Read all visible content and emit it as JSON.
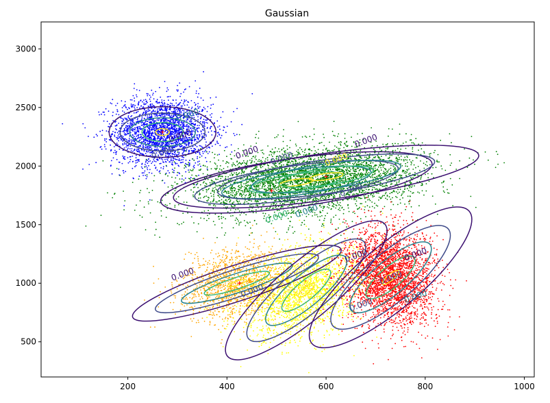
{
  "chart_data": {
    "type": "scatter",
    "title": "Gaussian",
    "xlabel": "",
    "ylabel": "",
    "xlim": [
      25,
      1020
    ],
    "ylim": [
      200,
      3230
    ],
    "xticks": [
      200,
      400,
      600,
      800,
      1000
    ],
    "yticks": [
      500,
      1000,
      1500,
      2000,
      2500,
      3000
    ],
    "grid": false,
    "legend": "none",
    "contour_levels": [
      "#3b0f70",
      "#3e4a89",
      "#26828e",
      "#35b779",
      "#fde725"
    ],
    "contour_label_text": "0.000",
    "clusters": [
      {
        "color": "#0000ff",
        "mean": [
          270,
          2290
        ],
        "std": [
          50,
          150
        ],
        "rotation_deg": 0,
        "count": 2400,
        "contours": [
          [
            10,
            32
          ],
          [
            30,
            90
          ],
          [
            48,
            135
          ],
          [
            62,
            180
          ],
          [
            78,
            240
          ]
        ],
        "contour_labels": [
          [
            285,
            2200
          ],
          [
            250,
            2060
          ],
          [
            300,
            2380
          ]
        ]
      },
      {
        "color": "#008000",
        "mean": [
          540,
          1860
        ],
        "std": [
          120,
          150
        ],
        "rotation_deg": 8,
        "count": 2600,
        "contours": [
          [
            25,
            30
          ],
          [
            70,
            80
          ],
          [
            110,
            120
          ],
          [
            150,
            160
          ],
          [
            200,
            230
          ]
        ],
        "contour_labels": [
          [
            420,
            2060
          ],
          [
            490,
            2010
          ],
          [
            540,
            1560
          ],
          [
            480,
            1510
          ],
          [
            600,
            2000
          ]
        ]
      },
      {
        "color": "#008000",
        "mean": [
          600,
          1910
        ],
        "std": [
          110,
          130
        ],
        "rotation_deg": 8,
        "count": 1600,
        "contours": [
          [
            25,
            30
          ],
          [
            70,
            80
          ],
          [
            110,
            120
          ],
          [
            160,
            160
          ],
          [
            225,
            220
          ]
        ],
        "contour_labels": [
          [
            660,
            2160
          ],
          [
            630,
            1740
          ]
        ]
      },
      {
        "color": "#ffa500",
        "mean": [
          420,
          1000
        ],
        "std": [
          60,
          150
        ],
        "rotation_deg": 18,
        "count": 1400,
        "contours": [
          [
            15,
            20
          ],
          [
            50,
            55
          ],
          [
            85,
            90
          ],
          [
            125,
            130
          ],
          [
            160,
            170
          ]
        ],
        "contour_labels": [
          [
            290,
            1020
          ],
          [
            430,
            880
          ]
        ]
      },
      {
        "color": "#ffff00",
        "mean": [
          560,
          940
        ],
        "std": [
          75,
          200
        ],
        "rotation_deg": 40,
        "count": 2000,
        "contours": [
          [
            15,
            30
          ],
          [
            45,
            90
          ],
          [
            75,
            150
          ],
          [
            110,
            210
          ],
          [
            150,
            270
          ]
        ],
        "contour_labels": [
          [
            640,
            1180
          ],
          [
            650,
            760
          ]
        ]
      },
      {
        "color": "#ff0000",
        "mean": [
          730,
          1050
        ],
        "std": [
          50,
          250
        ],
        "rotation_deg": 40,
        "count": 3200,
        "contours": [
          [
            15,
            30
          ],
          [
            45,
            100
          ],
          [
            75,
            160
          ],
          [
            110,
            230
          ],
          [
            150,
            300
          ]
        ],
        "contour_labels": [
          [
            760,
            1190
          ],
          [
            710,
            990
          ],
          [
            760,
            830
          ]
        ]
      }
    ],
    "center_markers": [
      [
        270,
        2290
      ],
      [
        490,
        1790
      ],
      [
        600,
        1910
      ],
      [
        425,
        1000
      ],
      [
        700,
        1060
      ]
    ]
  }
}
